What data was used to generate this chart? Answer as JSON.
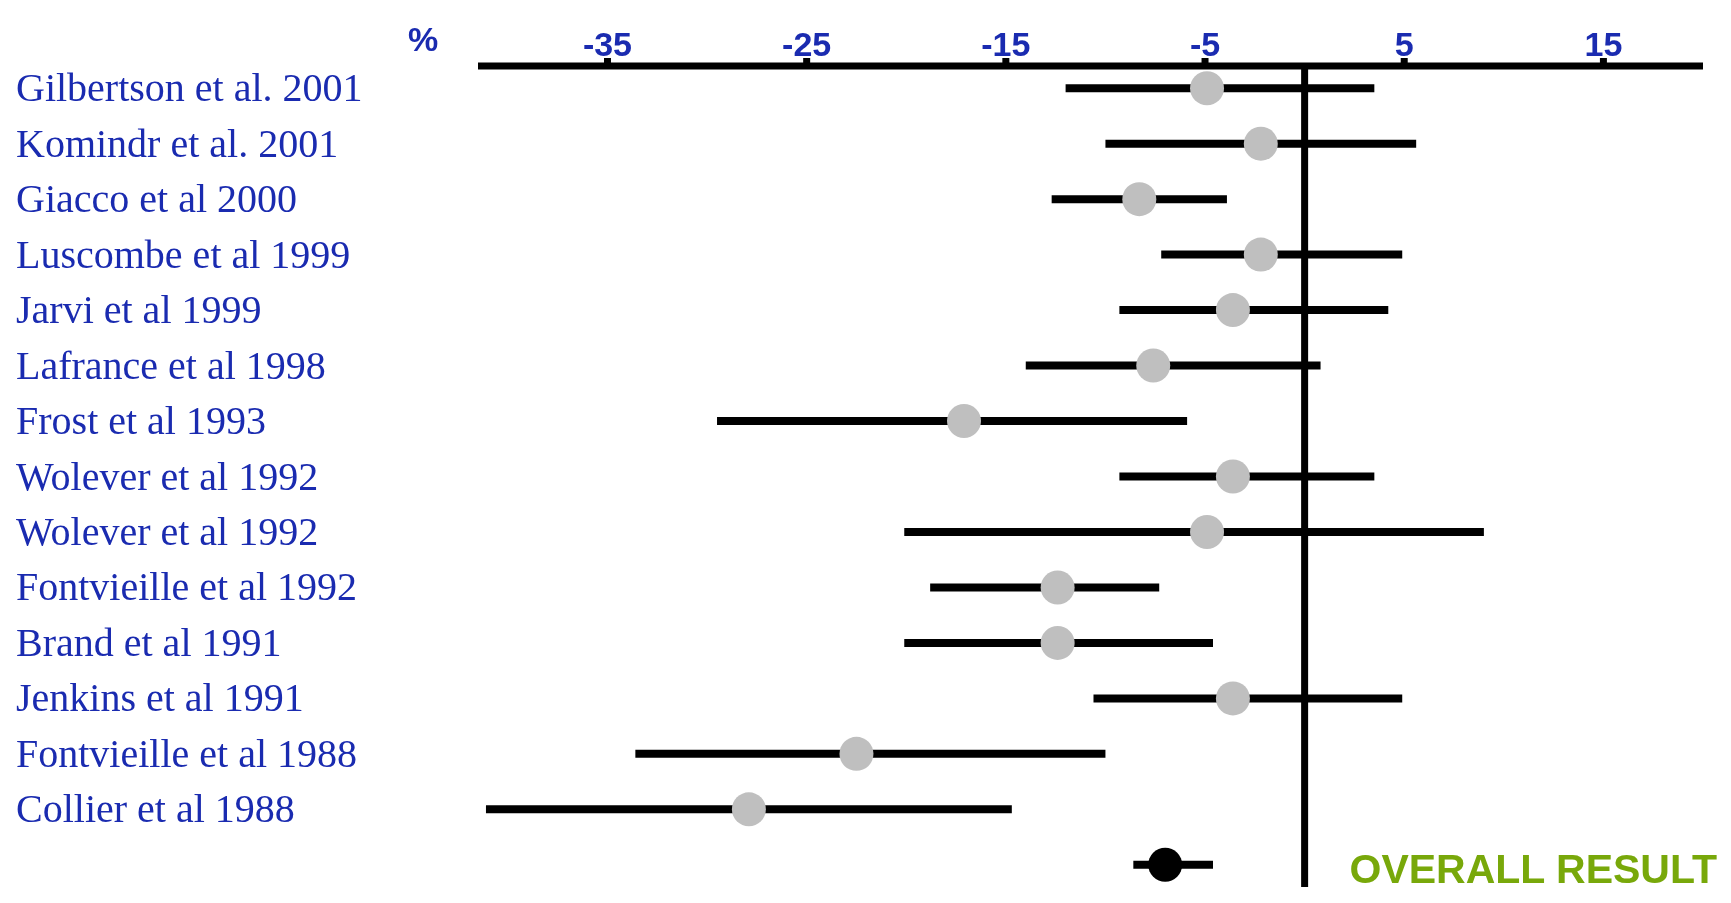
{
  "chart_data": {
    "type": "scatter",
    "orientation": "horizontal",
    "xlabel": "%",
    "categories": [
      "Gilbertson et al. 2001",
      "Komindr et al. 2001",
      "Giacco et al 2000",
      "Luscombe et al 1999",
      "Jarvi et al 1999",
      "Lafrance et al 1998",
      "Frost et al 1993",
      "Wolever et al 1992",
      "Wolever et al 1992",
      "Fontvieille et al 1992",
      "Brand et al 1991",
      "Jenkins et al 1991",
      "Fontvieille et al 1988",
      "Collier et al 1988",
      null
    ],
    "values": [
      -4.9,
      -2.2,
      -8.3,
      -2.2,
      -3.6,
      -7.6,
      -17.1,
      -3.6,
      -4.9,
      -12.4,
      -12.4,
      -3.6,
      -22.5,
      -27.9,
      -7.0
    ],
    "errors": [
      [
        -12.0,
        3.5
      ],
      [
        -10.0,
        5.6
      ],
      [
        -12.7,
        -3.9
      ],
      [
        -7.2,
        4.9
      ],
      [
        -9.3,
        4.2
      ],
      [
        -14.0,
        0.8
      ],
      [
        -29.5,
        -5.9
      ],
      [
        -9.3,
        3.5
      ],
      [
        -20.1,
        9.0
      ],
      [
        -18.8,
        -7.3
      ],
      [
        -20.1,
        -4.6
      ],
      [
        -10.6,
        4.9
      ],
      [
        -33.6,
        -10.0
      ],
      [
        -41.1,
        -14.7
      ],
      [
        -8.6,
        -4.6
      ]
    ],
    "colors": [
      "#bfbfbf",
      "#bfbfbf",
      "#bfbfbf",
      "#bfbfbf",
      "#bfbfbf",
      "#bfbfbf",
      "#bfbfbf",
      "#bfbfbf",
      "#bfbfbf",
      "#bfbfbf",
      "#bfbfbf",
      "#bfbfbf",
      "#bfbfbf",
      "#bfbfbf",
      "#000000"
    ],
    "xlim": [
      -41.5,
      20
    ],
    "xticks": [
      -35,
      -25,
      -15,
      -5,
      5,
      15
    ],
    "ref_lines": [
      {
        "axis": "x",
        "value": 0,
        "color": "#000000"
      }
    ],
    "annotations": [
      "OVERALL RESULT"
    ],
    "grid": false,
    "legend": false,
    "marker": "circle"
  }
}
